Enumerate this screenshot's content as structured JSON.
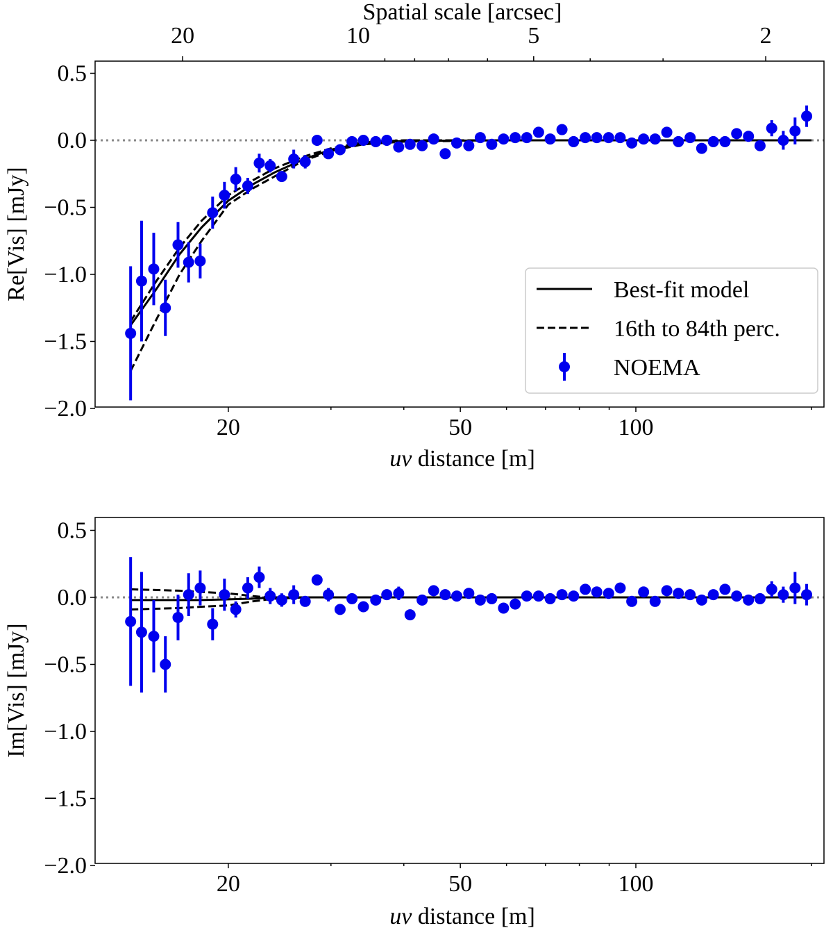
{
  "chart_data": [
    {
      "type": "scatter",
      "panel": "top",
      "title": "",
      "top_axis_label": "Spatial scale [arcsec]",
      "top_ticks": [
        20,
        10,
        5,
        2
      ],
      "top_tick_labels": [
        "20",
        "10",
        "5",
        "2"
      ],
      "xlabel_italic": "uv",
      "xlabel_rest": " distance [m]",
      "ylabel": "Re[Vis] [mJy]",
      "xscale": "log",
      "xlim": [
        12.5,
        215
      ],
      "ylim": [
        -2.0,
        0.55
      ],
      "xticks": [
        20,
        50,
        100
      ],
      "xtick_labels": [
        "20",
        "50",
        "100"
      ],
      "yticks": [
        0.5,
        0.0,
        -0.5,
        -1.0,
        -1.5,
        -2.0
      ],
      "ytick_labels": [
        "0.5",
        "0.0",
        "−0.5",
        "−1.0",
        "−1.5",
        "−2.0"
      ],
      "legend": {
        "placement": "lower-right",
        "entries": [
          "Best-fit model",
          "16th to 84th perc.",
          "NOEMA"
        ]
      },
      "reference_line": 0.0,
      "series": [
        {
          "name": "NOEMA",
          "color": "#0000ee",
          "x": [
            13.6,
            14.2,
            14.9,
            15.6,
            16.4,
            17.1,
            17.9,
            18.8,
            19.7,
            20.6,
            21.6,
            22.6,
            23.6,
            24.7,
            25.9,
            27.1,
            28.4,
            29.7,
            31.1,
            32.6,
            34.1,
            35.8,
            37.4,
            39.2,
            41.0,
            43.0,
            45.0,
            47.1,
            49.3,
            51.7,
            54.1,
            56.6,
            59.3,
            62.1,
            65.0,
            68.1,
            71.3,
            74.7,
            78.2,
            81.9,
            85.7,
            89.8,
            94.0,
            98.4,
            103.1,
            107.9,
            113.0,
            118.3,
            123.9,
            129.7,
            135.8,
            142.2,
            148.9,
            156.0,
            163.3,
            171.0,
            179.0,
            187.5,
            196.3
          ],
          "y": [
            -1.44,
            -1.05,
            -0.96,
            -1.25,
            -0.78,
            -0.91,
            -0.9,
            -0.54,
            -0.41,
            -0.29,
            -0.34,
            -0.17,
            -0.19,
            -0.27,
            -0.14,
            -0.16,
            0.0,
            -0.1,
            -0.07,
            -0.01,
            0.0,
            -0.01,
            0.0,
            -0.05,
            -0.03,
            -0.04,
            0.01,
            -0.1,
            -0.02,
            -0.04,
            0.02,
            -0.03,
            0.01,
            0.02,
            0.02,
            0.06,
            0.01,
            0.08,
            -0.01,
            0.02,
            0.02,
            0.02,
            0.02,
            -0.02,
            0.01,
            0.01,
            0.06,
            -0.01,
            0.02,
            -0.06,
            -0.01,
            -0.01,
            0.05,
            0.03,
            -0.04,
            0.09,
            0.0,
            0.07,
            0.18
          ],
          "yerr": [
            0.5,
            0.45,
            0.27,
            0.21,
            0.17,
            0.15,
            0.13,
            0.12,
            0.1,
            0.09,
            0.06,
            0.07,
            0.05,
            0.04,
            0.07,
            0.05,
            0.04,
            0.04,
            0.03,
            0.03,
            0.03,
            0.03,
            0.04,
            0.04,
            0.04,
            0.04,
            0.04,
            0.04,
            0.03,
            0.04,
            0.03,
            0.03,
            0.03,
            0.03,
            0.03,
            0.03,
            0.03,
            0.03,
            0.03,
            0.03,
            0.03,
            0.03,
            0.03,
            0.03,
            0.03,
            0.03,
            0.03,
            0.03,
            0.03,
            0.03,
            0.03,
            0.03,
            0.03,
            0.03,
            0.04,
            0.06,
            0.07,
            0.1,
            0.08
          ]
        },
        {
          "name": "Best-fit model",
          "style": "solid",
          "x": [
            13.6,
            15,
            16.5,
            18,
            20,
            22,
            24,
            27,
            30,
            34,
            40,
            60,
            200
          ],
          "y": [
            -1.38,
            -1.12,
            -0.85,
            -0.65,
            -0.45,
            -0.33,
            -0.24,
            -0.14,
            -0.07,
            -0.02,
            -0.005,
            0,
            0
          ]
        },
        {
          "name": "16th perc.",
          "style": "dashed",
          "x": [
            13.6,
            15,
            16.5,
            18,
            20,
            22,
            24,
            27,
            30,
            34,
            40,
            60,
            200
          ],
          "y": [
            -1.72,
            -1.35,
            -1.0,
            -0.75,
            -0.48,
            -0.36,
            -0.27,
            -0.15,
            -0.08,
            -0.03,
            -0.01,
            0,
            0
          ]
        },
        {
          "name": "84th perc.",
          "style": "dashed",
          "x": [
            13.6,
            15,
            16.5,
            18,
            20,
            22,
            24,
            27,
            30,
            34,
            40,
            60,
            200
          ],
          "y": [
            -1.35,
            -1.06,
            -0.8,
            -0.6,
            -0.41,
            -0.3,
            -0.21,
            -0.12,
            -0.06,
            -0.015,
            0,
            0,
            0
          ]
        }
      ]
    },
    {
      "type": "scatter",
      "panel": "bottom",
      "xlabel_italic": "uv",
      "xlabel_rest": " distance [m]",
      "ylabel": "Im[Vis] [mJy]",
      "xscale": "log",
      "xlim": [
        12.5,
        215
      ],
      "ylim": [
        -2.0,
        0.55
      ],
      "xticks": [
        20,
        50,
        100
      ],
      "xtick_labels": [
        "20",
        "50",
        "100"
      ],
      "yticks": [
        0.5,
        0.0,
        -0.5,
        -1.0,
        -1.5,
        -2.0
      ],
      "ytick_labels": [
        "0.5",
        "0.0",
        "−0.5",
        "−1.0",
        "−1.5",
        "−2.0"
      ],
      "reference_line": 0.0,
      "series": [
        {
          "name": "NOEMA",
          "color": "#0000ee",
          "x": [
            13.6,
            14.2,
            14.9,
            15.6,
            16.4,
            17.1,
            17.9,
            18.8,
            19.7,
            20.6,
            21.6,
            22.6,
            23.6,
            24.7,
            25.9,
            27.1,
            28.4,
            29.7,
            31.1,
            32.6,
            34.1,
            35.8,
            37.4,
            39.2,
            41.0,
            43.0,
            45.0,
            47.1,
            49.3,
            51.7,
            54.1,
            56.6,
            59.3,
            62.1,
            65.0,
            68.1,
            71.3,
            74.7,
            78.2,
            81.9,
            85.7,
            89.8,
            94.0,
            98.4,
            103.1,
            107.9,
            113.0,
            118.3,
            123.9,
            129.7,
            135.8,
            142.2,
            148.9,
            156.0,
            163.3,
            171.0,
            179.0,
            187.5,
            196.3
          ],
          "y": [
            -0.18,
            -0.26,
            -0.29,
            -0.5,
            -0.15,
            0.02,
            0.07,
            -0.2,
            0.02,
            -0.09,
            0.07,
            0.15,
            0.01,
            -0.02,
            0.02,
            -0.03,
            0.13,
            0.02,
            -0.09,
            -0.01,
            -0.07,
            -0.02,
            0.02,
            0.03,
            -0.13,
            -0.02,
            0.05,
            0.02,
            0.01,
            0.03,
            -0.02,
            -0.01,
            -0.08,
            -0.05,
            0.01,
            0.01,
            -0.01,
            0.02,
            0.01,
            0.06,
            0.04,
            0.03,
            0.07,
            -0.03,
            0.04,
            -0.03,
            0.05,
            0.03,
            0.02,
            -0.02,
            0.02,
            0.06,
            0.01,
            -0.02,
            -0.01,
            0.06,
            0.02,
            0.07,
            0.02
          ],
          "yerr": [
            0.48,
            0.45,
            0.27,
            0.21,
            0.17,
            0.16,
            0.13,
            0.12,
            0.12,
            0.06,
            0.08,
            0.08,
            0.06,
            0.05,
            0.07,
            0.04,
            0.03,
            0.05,
            0.03,
            0.03,
            0.03,
            0.03,
            0.04,
            0.05,
            0.04,
            0.04,
            0.03,
            0.04,
            0.03,
            0.04,
            0.03,
            0.03,
            0.03,
            0.03,
            0.03,
            0.03,
            0.03,
            0.03,
            0.03,
            0.03,
            0.03,
            0.03,
            0.03,
            0.03,
            0.03,
            0.03,
            0.03,
            0.03,
            0.03,
            0.03,
            0.03,
            0.03,
            0.03,
            0.03,
            0.04,
            0.06,
            0.06,
            0.12,
            0.08
          ]
        },
        {
          "name": "Best-fit model",
          "style": "solid",
          "x": [
            13.6,
            15,
            16.5,
            18,
            20,
            22,
            24,
            27,
            30,
            34,
            40,
            60,
            200
          ],
          "y": [
            -0.02,
            -0.02,
            -0.02,
            -0.02,
            -0.015,
            -0.01,
            0,
            0,
            0,
            0,
            0,
            0,
            0
          ]
        },
        {
          "name": "84th perc.",
          "style": "dashed",
          "x": [
            13.6,
            15,
            16.5,
            18,
            20,
            22,
            24,
            27,
            30,
            34,
            40,
            60,
            200
          ],
          "y": [
            0.06,
            0.055,
            0.05,
            0.04,
            0.03,
            0.01,
            -0.005,
            0,
            0,
            0,
            0,
            0,
            0
          ]
        },
        {
          "name": "16th perc.",
          "style": "dashed",
          "x": [
            13.6,
            15,
            16.5,
            18,
            20,
            22,
            24,
            27,
            30,
            34,
            40,
            60,
            200
          ],
          "y": [
            -0.09,
            -0.085,
            -0.08,
            -0.07,
            -0.06,
            -0.03,
            -0.01,
            0,
            0,
            0,
            0,
            0,
            0
          ]
        }
      ]
    }
  ]
}
